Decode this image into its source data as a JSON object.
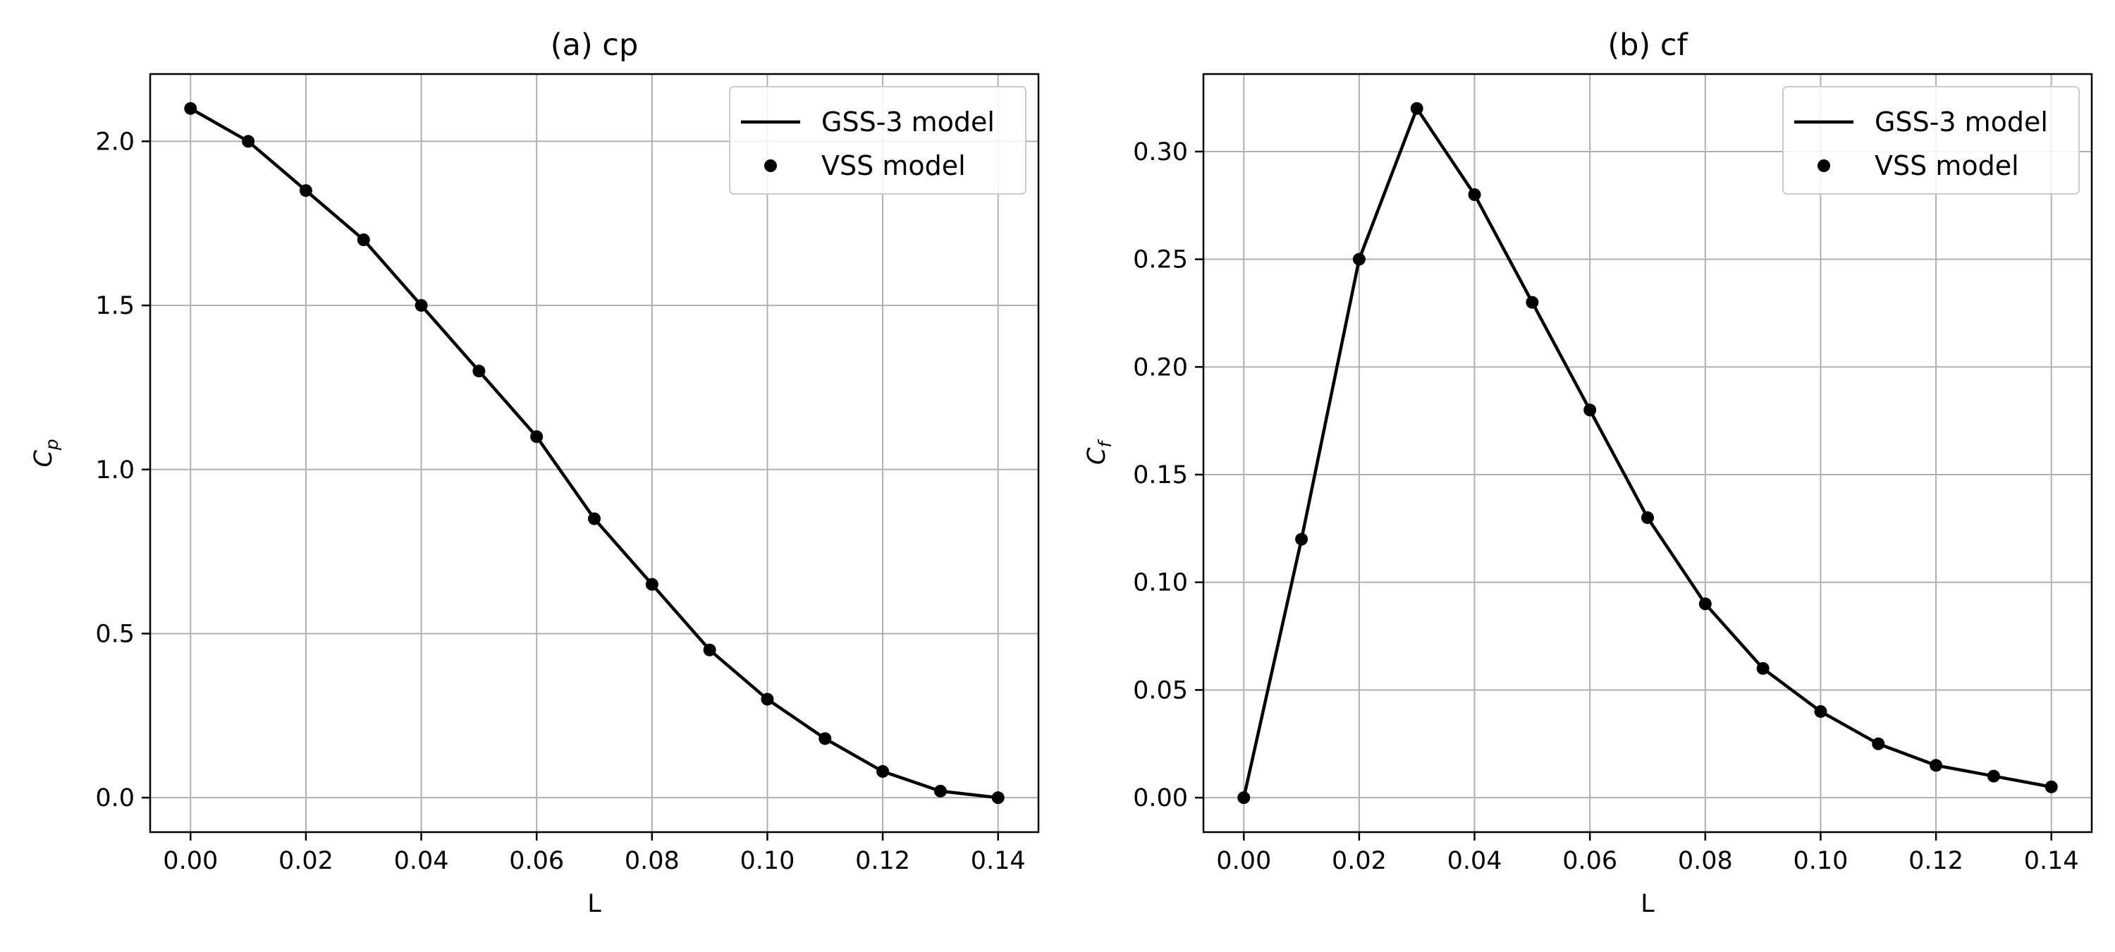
{
  "chart_data": [
    {
      "type": "line",
      "title": "(a) cp",
      "xlabel": "L",
      "ylabel": {
        "base": "C",
        "sub": "p"
      },
      "xlim": [
        -0.007,
        0.147
      ],
      "ylim": [
        -0.105,
        2.205
      ],
      "xticks": [
        0.0,
        0.02,
        0.04,
        0.06,
        0.08,
        0.1,
        0.12,
        0.14
      ],
      "xtick_labels": [
        "0.00",
        "0.02",
        "0.04",
        "0.06",
        "0.08",
        "0.10",
        "0.12",
        "0.14"
      ],
      "yticks": [
        0.0,
        0.5,
        1.0,
        1.5,
        2.0
      ],
      "ytick_labels": [
        "0.0",
        "0.5",
        "1.0",
        "1.5",
        "2.0"
      ],
      "grid": true,
      "legend_position": "top-right",
      "x": [
        0.0,
        0.01,
        0.02,
        0.03,
        0.04,
        0.05,
        0.06,
        0.07,
        0.08,
        0.09,
        0.1,
        0.11,
        0.12,
        0.13,
        0.14
      ],
      "series": [
        {
          "name": "GSS-3 model",
          "style": "line",
          "color": "#000000",
          "values": [
            2.1,
            2.0,
            1.85,
            1.7,
            1.5,
            1.3,
            1.1,
            0.85,
            0.65,
            0.45,
            0.3,
            0.18,
            0.08,
            0.02,
            0.0
          ]
        },
        {
          "name": "VSS model",
          "style": "markers",
          "color": "#000000",
          "values": [
            2.1,
            2.0,
            1.85,
            1.7,
            1.5,
            1.3,
            1.1,
            0.85,
            0.65,
            0.45,
            0.3,
            0.18,
            0.08,
            0.02,
            0.0
          ]
        }
      ]
    },
    {
      "type": "line",
      "title": "(b) cf",
      "xlabel": "L",
      "ylabel": {
        "base": "C",
        "sub": "f"
      },
      "xlim": [
        -0.007,
        0.147
      ],
      "ylim": [
        -0.016,
        0.336
      ],
      "xticks": [
        0.0,
        0.02,
        0.04,
        0.06,
        0.08,
        0.1,
        0.12,
        0.14
      ],
      "xtick_labels": [
        "0.00",
        "0.02",
        "0.04",
        "0.06",
        "0.08",
        "0.10",
        "0.12",
        "0.14"
      ],
      "yticks": [
        0.0,
        0.05,
        0.1,
        0.15,
        0.2,
        0.25,
        0.3
      ],
      "ytick_labels": [
        "0.00",
        "0.05",
        "0.10",
        "0.15",
        "0.20",
        "0.25",
        "0.30"
      ],
      "grid": true,
      "legend_position": "top-right",
      "x": [
        0.0,
        0.01,
        0.02,
        0.03,
        0.04,
        0.05,
        0.06,
        0.07,
        0.08,
        0.09,
        0.1,
        0.11,
        0.12,
        0.13,
        0.14
      ],
      "series": [
        {
          "name": "GSS-3 model",
          "style": "line",
          "color": "#000000",
          "values": [
            0.0,
            0.12,
            0.25,
            0.32,
            0.28,
            0.23,
            0.18,
            0.13,
            0.09,
            0.06,
            0.04,
            0.025,
            0.015,
            0.01,
            0.005
          ]
        },
        {
          "name": "VSS model",
          "style": "markers",
          "color": "#000000",
          "values": [
            0.0,
            0.12,
            0.25,
            0.32,
            0.28,
            0.23,
            0.18,
            0.13,
            0.09,
            0.06,
            0.04,
            0.025,
            0.015,
            0.01,
            0.005
          ]
        }
      ]
    }
  ]
}
